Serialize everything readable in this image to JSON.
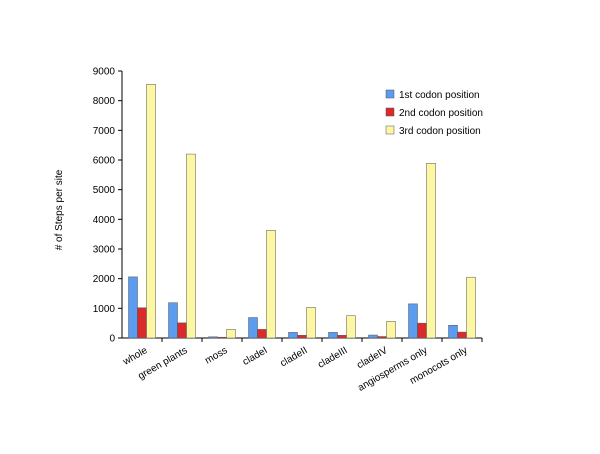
{
  "chart_data": {
    "type": "bar",
    "title": "",
    "xlabel": "",
    "ylabel": "# of Steps per site",
    "ylim": [
      0,
      9000
    ],
    "yticks": [
      0,
      1000,
      2000,
      3000,
      4000,
      5000,
      6000,
      7000,
      8000,
      9000
    ],
    "grid": false,
    "legend_position": "top-right",
    "categories": [
      "whole",
      "green plants",
      "moss",
      "cladeI",
      "cladeII",
      "cladeIII",
      "cladeIV",
      "angiosperms only",
      "monocots only"
    ],
    "series": [
      {
        "name": "1st codon position",
        "color": "#5b9bf0",
        "values": [
          2060,
          1190,
          40,
          690,
          190,
          190,
          100,
          1150,
          430
        ]
      },
      {
        "name": "2nd codon position",
        "color": "#d92b2b",
        "values": [
          1020,
          510,
          10,
          290,
          90,
          90,
          50,
          500,
          200
        ]
      },
      {
        "name": "3rd codon position",
        "color": "#fdf7a4",
        "values": [
          8550,
          6200,
          290,
          3630,
          1030,
          750,
          560,
          5890,
          2050
        ]
      }
    ]
  }
}
